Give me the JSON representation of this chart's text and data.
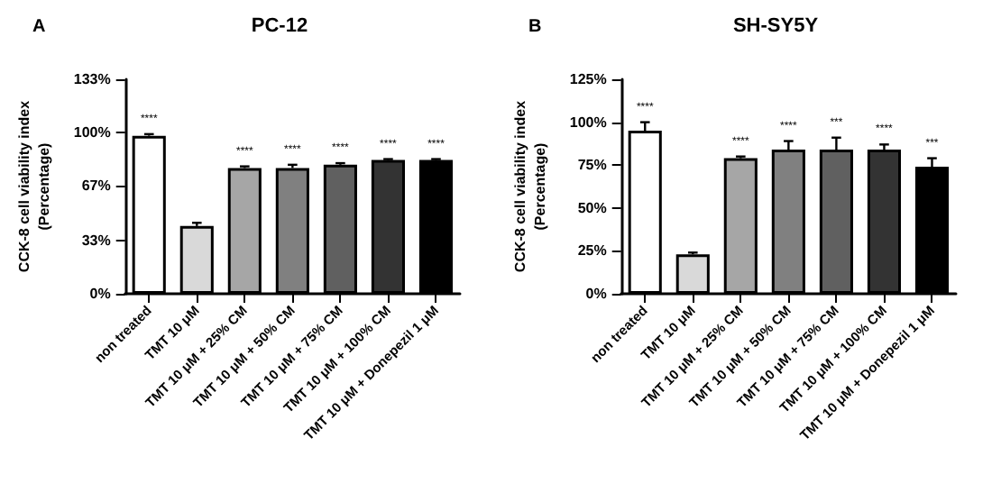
{
  "chart_data": [
    {
      "type": "bar",
      "title": "PC-12",
      "ylabel": "CCK-8 cell viability index\n(Percentage)",
      "categories": [
        "non treated",
        "TMT 10 μM",
        "TMT 10 μM + 25% CM",
        "TMT 10 μM + 50% CM",
        "TMT 10 μM + 75% CM",
        "TMT 10 μM + 100% CM",
        "TMT 10 μM + Donepezil 1 μM"
      ],
      "values": [
        98,
        42,
        78,
        78,
        80,
        83,
        83
      ],
      "errors": [
        [
          98,
          99
        ],
        [
          42,
          44
        ],
        [
          78,
          79
        ],
        [
          78,
          80
        ],
        [
          80,
          81
        ],
        [
          83,
          83.5
        ],
        [
          83,
          83.5
        ]
      ],
      "value_labels": [
        "****",
        null,
        "****",
        "****",
        "****",
        "****",
        "****"
      ],
      "colors": [
        "#ffffff",
        "#d9d9d9",
        "#a6a6a6",
        "#808080",
        "#606060",
        "#333333",
        "#000000"
      ],
      "ylim": [
        0,
        133
      ],
      "yticks": [
        {
          "value": 0,
          "label": "0%"
        },
        {
          "value": 33,
          "label": "33%"
        },
        {
          "value": 67,
          "label": "67%"
        },
        {
          "value": 100,
          "label": "100%"
        },
        {
          "value": 133,
          "label": "133%"
        }
      ],
      "grid": false,
      "annotations": [
        "A"
      ]
    },
    {
      "type": "bar",
      "title": "SH-SY5Y",
      "ylabel": "CCK-8 cell viability index\n(Percentage)",
      "categories": [
        "non treated",
        "TMT 10 μM",
        "TMT 10 μM + 25% CM",
        "TMT 10 μM + 50% CM",
        "TMT 10 μM + 75% CM",
        "TMT 10 μM + 100% CM",
        "TMT 10 μM + Donepezil 1 μM"
      ],
      "values": [
        95,
        23,
        79,
        84,
        84,
        84,
        74
      ],
      "errors": [
        [
          95,
          100
        ],
        [
          23,
          24
        ],
        [
          79,
          80
        ],
        [
          84,
          89
        ],
        [
          84,
          91
        ],
        [
          84,
          87
        ],
        [
          74,
          79
        ]
      ],
      "value_labels": [
        "****",
        null,
        "****",
        "****",
        "***",
        "****",
        "***"
      ],
      "colors": [
        "#ffffff",
        "#d9d9d9",
        "#a6a6a6",
        "#808080",
        "#606060",
        "#333333",
        "#000000"
      ],
      "ylim": [
        0,
        125
      ],
      "yticks": [
        {
          "value": 0,
          "label": "0%"
        },
        {
          "value": 25,
          "label": "25%"
        },
        {
          "value": 50,
          "label": "50%"
        },
        {
          "value": 75,
          "label": "75%"
        },
        {
          "value": 100,
          "label": "100%"
        },
        {
          "value": 125,
          "label": "125%"
        }
      ],
      "grid": false,
      "annotations": [
        "B"
      ]
    }
  ]
}
